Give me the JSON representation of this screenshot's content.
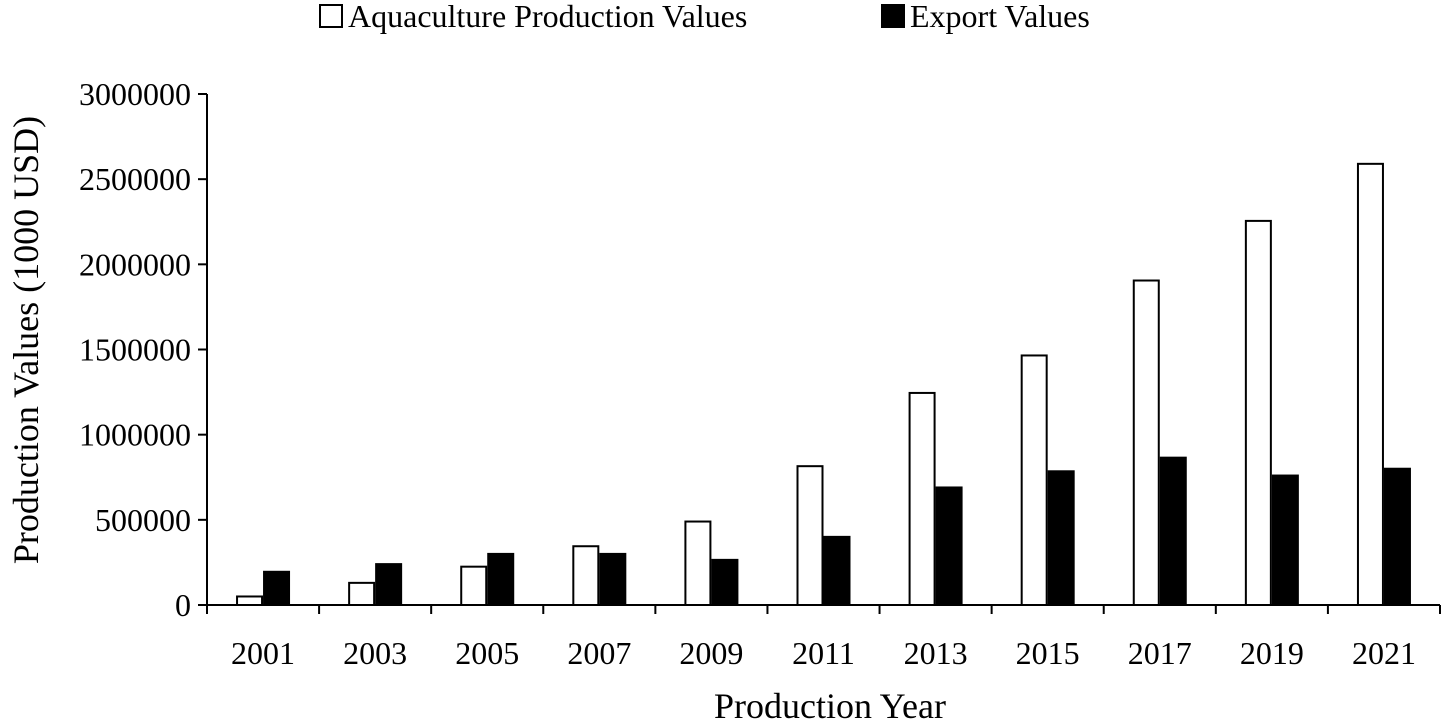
{
  "chart_data": {
    "type": "bar",
    "title": "",
    "xlabel": "Production Year",
    "ylabel": "Production Values (1000 USD)",
    "categories": [
      "2001",
      "2003",
      "2005",
      "2007",
      "2009",
      "2011",
      "2013",
      "2015",
      "2017",
      "2019",
      "2021"
    ],
    "series": [
      {
        "name": "Aquaculture Production Values",
        "color": "#ffffff",
        "values": [
          50000,
          130000,
          225000,
          345000,
          490000,
          815000,
          1245000,
          1465000,
          1905000,
          2255000,
          2590000
        ]
      },
      {
        "name": "Export Values",
        "color": "#000000",
        "values": [
          195000,
          240000,
          300000,
          300000,
          265000,
          400000,
          690000,
          785000,
          865000,
          760000,
          800000
        ]
      }
    ],
    "ylim": [
      0,
      3000000
    ],
    "yticks": [
      "0",
      "500000",
      "1000000",
      "1500000",
      "2000000",
      "2500000",
      "3000000"
    ],
    "grid": false,
    "legend_position": "top-center"
  }
}
